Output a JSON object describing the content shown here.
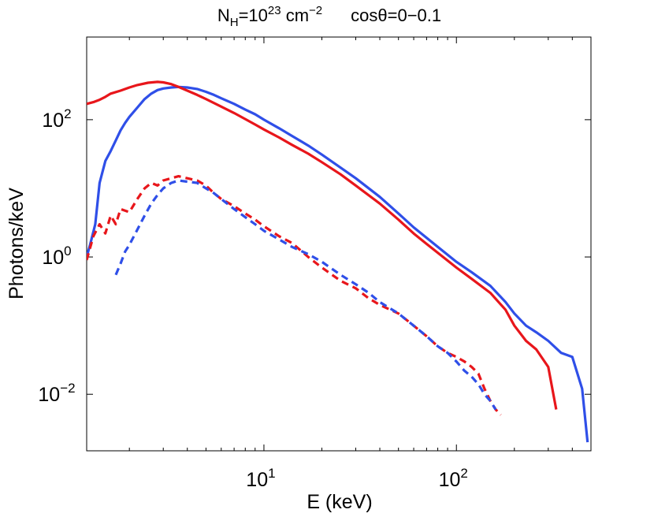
{
  "chart_data": {
    "type": "line",
    "title": {
      "nh_prefix": "N",
      "nh_sub": "H",
      "nh_eq": "=10",
      "nh_exp": "23",
      "nh_unit": " cm",
      "nh_unit_exp": "−2",
      "cos_label": "cosθ=0−0.1"
    },
    "xlabel": "E (keV)",
    "ylabel": "Photons/keV",
    "xscale": "log",
    "yscale": "log",
    "xlim": [
      1.2,
      500
    ],
    "ylim": [
      0.0015,
      1600
    ],
    "xticks": [
      {
        "value": 10,
        "base": "10",
        "exp": "1"
      },
      {
        "value": 100,
        "base": "10",
        "exp": "2"
      }
    ],
    "yticks": [
      {
        "value": 100,
        "base": "10",
        "exp": "2"
      },
      {
        "value": 1,
        "base": "10",
        "exp": "0"
      },
      {
        "value": 0.01,
        "base": "10",
        "exp": "−2"
      }
    ],
    "grid": false,
    "series": [
      {
        "name": "blue-solid",
        "color": "#2f4fe8",
        "dash": "solid",
        "x": [
          1.2,
          1.25,
          1.33,
          1.4,
          1.5,
          1.6,
          1.7,
          1.8,
          1.9,
          2.0,
          2.2,
          2.4,
          2.6,
          2.8,
          3.0,
          3.3,
          3.6,
          4.0,
          4.5,
          5.0,
          5.5,
          6,
          7,
          8,
          9,
          10,
          12,
          14,
          17,
          20,
          25,
          30,
          40,
          50,
          60,
          70,
          80,
          100,
          120,
          150,
          180,
          200,
          230,
          260,
          300,
          350,
          400,
          450,
          480
        ],
        "y": [
          1.0,
          1.5,
          3.0,
          12,
          25,
          35,
          50,
          70,
          90,
          110,
          150,
          200,
          240,
          270,
          285,
          295,
          300,
          295,
          280,
          255,
          230,
          205,
          170,
          140,
          120,
          100,
          75,
          58,
          42,
          31,
          20,
          14,
          7.5,
          4.3,
          2.7,
          1.9,
          1.4,
          0.85,
          0.6,
          0.38,
          0.22,
          0.15,
          0.1,
          0.08,
          0.06,
          0.04,
          0.035,
          0.012,
          0.002
        ]
      },
      {
        "name": "red-solid",
        "color": "#e8161b",
        "dash": "solid",
        "x": [
          1.2,
          1.3,
          1.4,
          1.5,
          1.6,
          1.8,
          2.0,
          2.2,
          2.5,
          2.8,
          3.0,
          3.3,
          3.6,
          4.0,
          4.5,
          5,
          6,
          7,
          8,
          9,
          10,
          12,
          14,
          17,
          20,
          25,
          30,
          40,
          50,
          60,
          70,
          80,
          100,
          120,
          150,
          180,
          200,
          230,
          260,
          300,
          330
        ],
        "y": [
          170,
          180,
          195,
          215,
          240,
          265,
          295,
          320,
          345,
          355,
          350,
          330,
          300,
          265,
          230,
          200,
          155,
          125,
          102,
          85,
          72,
          55,
          43,
          32,
          24,
          16,
          11,
          6,
          3.5,
          2.2,
          1.55,
          1.15,
          0.7,
          0.48,
          0.3,
          0.17,
          0.1,
          0.06,
          0.045,
          0.025,
          0.006
        ]
      },
      {
        "name": "red-dashed",
        "color": "#e8161b",
        "dash": "dashed",
        "x": [
          1.2,
          1.3,
          1.4,
          1.5,
          1.6,
          1.7,
          1.8,
          2.0,
          2.2,
          2.4,
          2.6,
          2.8,
          3.0,
          3.3,
          3.6,
          4.0,
          4.5,
          5,
          5.5,
          6,
          7,
          8,
          9,
          10,
          12,
          14,
          17,
          20,
          25,
          30,
          35,
          40,
          50,
          60,
          70,
          80,
          90,
          100,
          110,
          120,
          130,
          140,
          150,
          160,
          170
        ],
        "y": [
          0.9,
          2.0,
          3.0,
          2.2,
          4.0,
          3.0,
          5.0,
          4.5,
          7.0,
          10,
          12,
          11,
          13,
          14,
          15,
          14,
          13,
          11,
          8.5,
          7.0,
          5.5,
          4.3,
          3.5,
          2.8,
          2.0,
          1.6,
          1.0,
          0.7,
          0.45,
          0.35,
          0.25,
          0.2,
          0.15,
          0.1,
          0.07,
          0.05,
          0.04,
          0.035,
          0.03,
          0.025,
          0.02,
          0.012,
          0.008,
          0.006,
          0.005
        ]
      },
      {
        "name": "blue-dashed",
        "color": "#2f4fe8",
        "dash": "dashed",
        "x": [
          1.7,
          1.8,
          1.9,
          2.0,
          2.2,
          2.4,
          2.6,
          2.8,
          3.0,
          3.3,
          3.6,
          4.0,
          4.5,
          5,
          5.5,
          6,
          7,
          8,
          9,
          10,
          12,
          14,
          17,
          20,
          25,
          30,
          35,
          40,
          50,
          60,
          70,
          80,
          90,
          100,
          110,
          120,
          130,
          140,
          150,
          160
        ],
        "y": [
          0.55,
          0.8,
          1.2,
          1.5,
          2.5,
          4.0,
          6.0,
          8.0,
          10,
          12,
          13,
          12.5,
          12,
          10,
          8.5,
          7.0,
          5.0,
          3.8,
          3.0,
          2.4,
          1.8,
          1.4,
          1.1,
          0.85,
          0.55,
          0.4,
          0.3,
          0.22,
          0.15,
          0.1,
          0.07,
          0.05,
          0.04,
          0.03,
          0.022,
          0.018,
          0.014,
          0.01,
          0.008,
          0.006
        ]
      }
    ]
  }
}
